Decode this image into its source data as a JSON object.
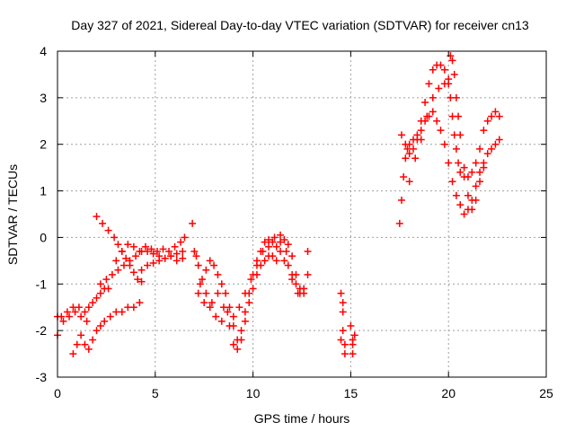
{
  "chart_data": {
    "type": "scatter",
    "title": "Day 327 of 2021, Sidereal Day-to-day VTEC variation (SDTVAR) for receiver cn13",
    "xlabel": "GPS time / hours",
    "ylabel": "SDTVAR / TECUs",
    "xlim": [
      0,
      25
    ],
    "ylim": [
      -3,
      4
    ],
    "xticks": [
      0,
      5,
      10,
      15,
      20,
      25
    ],
    "yticks": [
      -3,
      -2,
      -1,
      0,
      1,
      2,
      3,
      4
    ],
    "grid": true,
    "marker": "+",
    "marker_color": "#ff0000",
    "series": [
      {
        "values": [
          [
            0.0,
            -2.1
          ],
          [
            0.2,
            -1.7
          ],
          [
            0.5,
            -1.6
          ],
          [
            0.8,
            -1.5
          ],
          [
            1.1,
            -1.5
          ],
          [
            1.4,
            -1.6
          ],
          [
            1.6,
            -1.5
          ],
          [
            1.8,
            -1.4
          ],
          [
            2.0,
            -1.3
          ],
          [
            2.2,
            -1.2
          ],
          [
            2.4,
            -1.1
          ],
          [
            2.6,
            -1.1
          ],
          [
            0.0,
            -1.7
          ],
          [
            0.3,
            -1.8
          ],
          [
            0.6,
            -1.7
          ],
          [
            0.9,
            -1.6
          ],
          [
            1.2,
            -1.7
          ],
          [
            1.5,
            -1.8
          ],
          [
            0.8,
            -2.5
          ],
          [
            1.0,
            -2.3
          ],
          [
            1.2,
            -2.1
          ],
          [
            1.4,
            -2.3
          ],
          [
            1.6,
            -2.4
          ],
          [
            1.8,
            -2.2
          ],
          [
            2.0,
            -2.0
          ],
          [
            2.2,
            -1.9
          ],
          [
            2.4,
            -1.8
          ],
          [
            2.7,
            -1.7
          ],
          [
            3.0,
            -1.6
          ],
          [
            3.3,
            -1.6
          ],
          [
            3.6,
            -1.5
          ],
          [
            3.9,
            -1.5
          ],
          [
            4.2,
            -1.4
          ],
          [
            2.0,
            0.45
          ],
          [
            2.3,
            0.3
          ],
          [
            2.6,
            0.15
          ],
          [
            2.9,
            0.0
          ],
          [
            3.1,
            -0.15
          ],
          [
            3.3,
            -0.3
          ],
          [
            3.5,
            -0.45
          ],
          [
            3.7,
            -0.6
          ],
          [
            3.9,
            -0.75
          ],
          [
            4.1,
            -0.9
          ],
          [
            4.3,
            -0.95
          ],
          [
            2.2,
            -1.0
          ],
          [
            2.5,
            -0.9
          ],
          [
            2.8,
            -0.8
          ],
          [
            3.1,
            -0.7
          ],
          [
            3.4,
            -0.6
          ],
          [
            3.7,
            -0.5
          ],
          [
            4.0,
            -0.4
          ],
          [
            4.3,
            -0.3
          ],
          [
            4.6,
            -0.3
          ],
          [
            4.9,
            -0.35
          ],
          [
            5.2,
            -0.4
          ],
          [
            5.5,
            -0.45
          ],
          [
            5.8,
            -0.4
          ],
          [
            6.1,
            -0.35
          ],
          [
            6.4,
            -0.3
          ],
          [
            3.0,
            -0.5
          ],
          [
            3.3,
            -0.3
          ],
          [
            3.6,
            -0.15
          ],
          [
            3.9,
            -0.2
          ],
          [
            4.2,
            -0.3
          ],
          [
            4.5,
            -0.2
          ],
          [
            4.8,
            -0.25
          ],
          [
            5.1,
            -0.3
          ],
          [
            5.4,
            -0.25
          ],
          [
            5.7,
            -0.3
          ],
          [
            6.0,
            -0.2
          ],
          [
            6.3,
            -0.1
          ],
          [
            6.5,
            0.0
          ],
          [
            4.3,
            -0.7
          ],
          [
            4.6,
            -0.6
          ],
          [
            4.9,
            -0.55
          ],
          [
            5.2,
            -0.5
          ],
          [
            5.5,
            -0.45
          ],
          [
            5.8,
            -0.4
          ],
          [
            6.1,
            -0.5
          ],
          [
            6.4,
            -0.45
          ],
          [
            7.0,
            -0.3
          ],
          [
            7.2,
            -0.6
          ],
          [
            7.4,
            -0.9
          ],
          [
            7.6,
            -0.7
          ],
          [
            7.8,
            -0.5
          ],
          [
            8.0,
            -0.6
          ],
          [
            8.2,
            -0.8
          ],
          [
            8.4,
            -1.0
          ],
          [
            8.6,
            -1.2
          ],
          [
            8.8,
            -1.5
          ],
          [
            9.0,
            -1.9
          ],
          [
            9.2,
            -2.2
          ],
          [
            9.4,
            -2.0
          ],
          [
            9.6,
            -1.6
          ],
          [
            9.8,
            -1.2
          ],
          [
            10.0,
            -0.8
          ],
          [
            10.2,
            -0.5
          ],
          [
            10.4,
            -0.3
          ],
          [
            10.6,
            -0.1
          ],
          [
            10.8,
            -0.05
          ],
          [
            11.0,
            -0.1
          ],
          [
            11.2,
            -0.2
          ],
          [
            11.4,
            -0.1
          ],
          [
            11.6,
            -0.05
          ],
          [
            11.8,
            -0.15
          ],
          [
            12.0,
            -0.4
          ],
          [
            12.2,
            -0.8
          ],
          [
            12.4,
            -1.1
          ],
          [
            12.6,
            -1.2
          ],
          [
            12.8,
            -0.8
          ],
          [
            6.9,
            0.3
          ],
          [
            7.1,
            -0.4
          ],
          [
            7.3,
            -1.0
          ],
          [
            7.6,
            -1.2
          ],
          [
            7.9,
            -1.4
          ],
          [
            8.2,
            -1.2
          ],
          [
            8.5,
            -1.5
          ],
          [
            8.8,
            -1.9
          ],
          [
            9.0,
            -2.3
          ],
          [
            9.2,
            -2.4
          ],
          [
            9.4,
            -2.2
          ],
          [
            9.6,
            -1.8
          ],
          [
            9.8,
            -1.4
          ],
          [
            10.0,
            -1.1
          ],
          [
            10.2,
            -0.8
          ],
          [
            10.4,
            -0.6
          ],
          [
            10.6,
            -0.5
          ],
          [
            10.8,
            -0.4
          ],
          [
            11.0,
            -0.4
          ],
          [
            11.2,
            -0.5
          ],
          [
            11.4,
            -0.3
          ],
          [
            11.6,
            -0.5
          ],
          [
            11.8,
            -0.6
          ],
          [
            12.0,
            -0.8
          ],
          [
            12.2,
            -1.0
          ],
          [
            12.4,
            -1.2
          ],
          [
            12.6,
            -1.1
          ],
          [
            12.8,
            -0.3
          ],
          [
            7.2,
            -1.2
          ],
          [
            7.5,
            -1.4
          ],
          [
            7.8,
            -1.5
          ],
          [
            8.1,
            -1.7
          ],
          [
            8.4,
            -1.8
          ],
          [
            8.7,
            -1.6
          ],
          [
            9.0,
            -1.7
          ],
          [
            9.3,
            -1.5
          ],
          [
            9.6,
            -1.2
          ],
          [
            9.9,
            -0.9
          ],
          [
            10.2,
            -0.6
          ],
          [
            10.5,
            -0.3
          ],
          [
            10.8,
            -0.2
          ],
          [
            11.1,
            0.0
          ],
          [
            11.4,
            0.05
          ],
          [
            11.7,
            -0.3
          ],
          [
            12.0,
            -0.9
          ],
          [
            12.3,
            -1.2
          ],
          [
            14.5,
            -1.2
          ],
          [
            14.6,
            -1.6
          ],
          [
            14.6,
            -2.0
          ],
          [
            14.7,
            -2.3
          ],
          [
            14.7,
            -2.5
          ],
          [
            14.5,
            -2.2
          ],
          [
            14.6,
            -1.4
          ],
          [
            15.0,
            -1.9
          ],
          [
            15.1,
            -2.2
          ],
          [
            15.1,
            -2.5
          ],
          [
            15.2,
            -2.1
          ],
          [
            15.1,
            -2.3
          ],
          [
            17.5,
            0.3
          ],
          [
            17.6,
            0.8
          ],
          [
            17.7,
            1.3
          ],
          [
            17.8,
            1.7
          ],
          [
            17.9,
            1.9
          ],
          [
            18.0,
            2.0
          ],
          [
            18.2,
            2.1
          ],
          [
            18.4,
            2.2
          ],
          [
            18.6,
            2.5
          ],
          [
            18.8,
            2.9
          ],
          [
            19.0,
            3.3
          ],
          [
            19.2,
            3.6
          ],
          [
            19.4,
            3.7
          ],
          [
            19.6,
            3.7
          ],
          [
            19.8,
            3.6
          ],
          [
            20.0,
            3.3
          ],
          [
            20.1,
            3.0
          ],
          [
            20.2,
            2.6
          ],
          [
            20.3,
            2.2
          ],
          [
            20.4,
            1.9
          ],
          [
            20.5,
            1.6
          ],
          [
            20.6,
            1.4
          ],
          [
            20.8,
            1.3
          ],
          [
            21.0,
            1.3
          ],
          [
            21.2,
            1.4
          ],
          [
            21.4,
            1.6
          ],
          [
            21.6,
            1.9
          ],
          [
            21.8,
            2.3
          ],
          [
            22.0,
            2.5
          ],
          [
            22.2,
            2.6
          ],
          [
            22.4,
            2.7
          ],
          [
            22.6,
            2.6
          ],
          [
            17.6,
            2.2
          ],
          [
            17.8,
            2.0
          ],
          [
            18.0,
            1.8
          ],
          [
            18.2,
            1.9
          ],
          [
            18.4,
            2.1
          ],
          [
            18.6,
            2.3
          ],
          [
            18.8,
            2.5
          ],
          [
            19.0,
            2.6
          ],
          [
            19.2,
            2.7
          ],
          [
            19.4,
            2.5
          ],
          [
            19.6,
            2.3
          ],
          [
            19.8,
            2.0
          ],
          [
            20.0,
            1.6
          ],
          [
            20.2,
            1.2
          ],
          [
            20.4,
            0.9
          ],
          [
            20.6,
            0.7
          ],
          [
            20.8,
            0.5
          ],
          [
            21.0,
            0.6
          ],
          [
            21.2,
            0.8
          ],
          [
            21.4,
            1.1
          ],
          [
            21.6,
            1.4
          ],
          [
            21.8,
            1.6
          ],
          [
            22.0,
            1.8
          ],
          [
            22.2,
            1.9
          ],
          [
            22.4,
            2.0
          ],
          [
            22.6,
            2.1
          ],
          [
            18.0,
            1.2
          ],
          [
            18.3,
            1.7
          ],
          [
            18.6,
            2.1
          ],
          [
            18.9,
            2.6
          ],
          [
            19.2,
            3.0
          ],
          [
            19.5,
            3.2
          ],
          [
            19.8,
            3.3
          ],
          [
            20.0,
            3.4
          ],
          [
            20.1,
            3.9
          ],
          [
            20.2,
            3.8
          ],
          [
            20.3,
            3.5
          ],
          [
            20.4,
            3.0
          ],
          [
            20.5,
            2.6
          ],
          [
            20.6,
            2.2
          ],
          [
            20.8,
            1.5
          ],
          [
            21.0,
            0.9
          ],
          [
            21.2,
            0.6
          ],
          [
            21.4,
            0.8
          ],
          [
            21.6,
            1.2
          ],
          [
            21.8,
            1.5
          ]
        ]
      }
    ]
  }
}
